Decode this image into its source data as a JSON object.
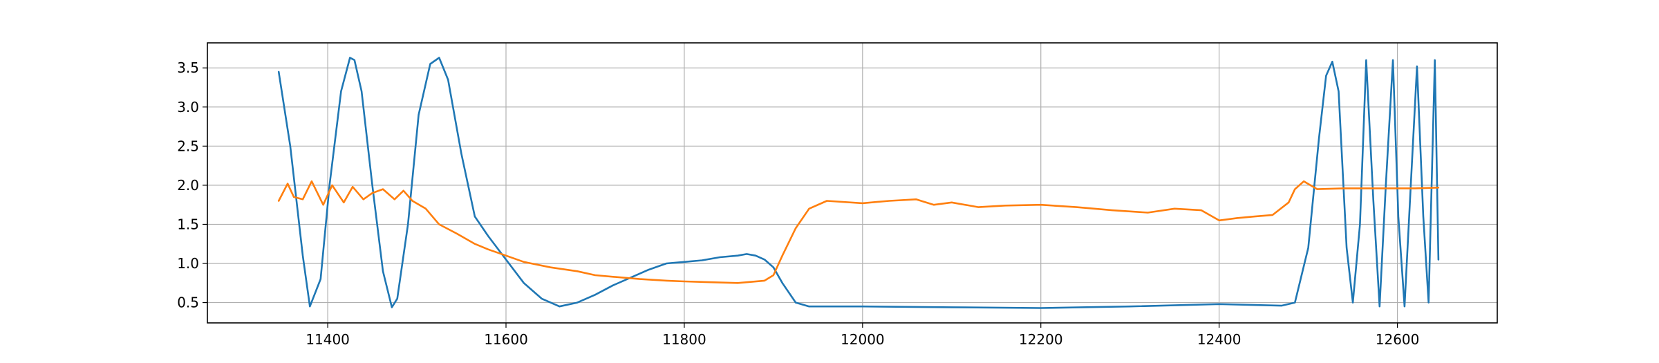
{
  "chart_data": {
    "type": "line",
    "title": "",
    "xlabel": "",
    "ylabel": "",
    "xlim": [
      11265,
      12712
    ],
    "ylim": [
      0.24,
      3.82
    ],
    "grid": true,
    "x_ticks": [
      11400,
      11600,
      11800,
      12000,
      12200,
      12400,
      12600
    ],
    "y_ticks": [
      0.5,
      1.0,
      1.5,
      2.0,
      2.5,
      3.0,
      3.5
    ],
    "x_tick_labels": [
      "11400",
      "11600",
      "11800",
      "12000",
      "12200",
      "12400",
      "12600"
    ],
    "y_tick_labels": [
      "0.5",
      "1.0",
      "1.5",
      "2.0",
      "2.5",
      "3.0",
      "3.5"
    ],
    "series": [
      {
        "color": "#1f77b4",
        "x": [
          11345,
          11358,
          11372,
          11380,
          11392,
          11402,
          11415,
          11425,
          11430,
          11438,
          11450,
          11462,
          11472,
          11478,
          11490,
          11502,
          11515,
          11525,
          11535,
          11550,
          11565,
          11580,
          11600,
          11620,
          11640,
          11660,
          11680,
          11700,
          11720,
          11740,
          11760,
          11780,
          11800,
          11820,
          11840,
          11860,
          11870,
          11880,
          11890,
          11900,
          11910,
          11925,
          11940,
          12000,
          12100,
          12200,
          12300,
          12400,
          12470,
          12485,
          12500,
          12512,
          12520,
          12527,
          12534,
          12543,
          12550,
          12558,
          12565,
          12573,
          12580,
          12587,
          12595,
          12601,
          12608,
          12615,
          12622,
          12629,
          12635,
          12642,
          12646
        ],
        "y": [
          3.45,
          2.5,
          1.1,
          0.45,
          0.8,
          2.0,
          3.2,
          3.63,
          3.6,
          3.2,
          2.0,
          0.9,
          0.44,
          0.55,
          1.5,
          2.9,
          3.55,
          3.63,
          3.35,
          2.4,
          1.6,
          1.35,
          1.05,
          0.75,
          0.55,
          0.45,
          0.5,
          0.6,
          0.72,
          0.82,
          0.92,
          1.0,
          1.02,
          1.04,
          1.08,
          1.1,
          1.12,
          1.1,
          1.05,
          0.95,
          0.75,
          0.5,
          0.45,
          0.45,
          0.44,
          0.43,
          0.45,
          0.48,
          0.46,
          0.5,
          1.2,
          2.6,
          3.4,
          3.58,
          3.2,
          1.2,
          0.5,
          1.5,
          3.6,
          1.8,
          0.45,
          2.0,
          3.6,
          1.6,
          0.45,
          2.0,
          3.52,
          1.6,
          0.5,
          3.6,
          1.05
        ]
      },
      {
        "color": "#ff7f0e",
        "x": [
          11345,
          11355,
          11362,
          11372,
          11382,
          11395,
          11405,
          11418,
          11428,
          11440,
          11450,
          11462,
          11475,
          11485,
          11495,
          11510,
          11525,
          11545,
          11565,
          11580,
          11600,
          11620,
          11650,
          11680,
          11700,
          11720,
          11750,
          11780,
          11800,
          11830,
          11860,
          11890,
          11900,
          11910,
          11925,
          11940,
          11960,
          12000,
          12030,
          12060,
          12080,
          12100,
          12130,
          12160,
          12200,
          12240,
          12280,
          12320,
          12350,
          12380,
          12400,
          12420,
          12440,
          12460,
          12478,
          12485,
          12495,
          12510,
          12540,
          12580,
          12620,
          12646
        ],
        "y": [
          1.8,
          2.02,
          1.85,
          1.82,
          2.05,
          1.75,
          2.0,
          1.78,
          1.98,
          1.82,
          1.9,
          1.95,
          1.82,
          1.93,
          1.8,
          1.7,
          1.5,
          1.38,
          1.25,
          1.18,
          1.1,
          1.02,
          0.95,
          0.9,
          0.85,
          0.83,
          0.8,
          0.78,
          0.77,
          0.76,
          0.75,
          0.78,
          0.85,
          1.1,
          1.45,
          1.7,
          1.8,
          1.77,
          1.8,
          1.82,
          1.75,
          1.78,
          1.72,
          1.74,
          1.75,
          1.72,
          1.68,
          1.65,
          1.7,
          1.68,
          1.55,
          1.58,
          1.6,
          1.62,
          1.78,
          1.95,
          2.05,
          1.95,
          1.96,
          1.96,
          1.96,
          1.97
        ]
      }
    ]
  }
}
